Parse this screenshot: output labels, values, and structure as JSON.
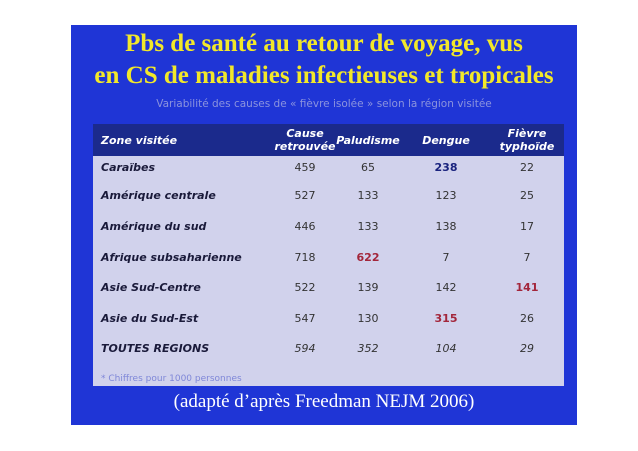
{
  "slide": {
    "title_line1": "Pbs de santé au retour de voyage, vus",
    "title_line2": "en CS de maladies infectieuses et tropicales",
    "subtitle": "Variabilité des causes de « fièvre isolée » selon la région visitée",
    "footnote": "* Chiffres pour 1000 personnes",
    "source": "(adapté d’après Freedman NEJM 2006)",
    "colors": {
      "background": "#1f35d6",
      "title": "#f2e82a",
      "table_header": "#1b2a8c",
      "table_body": "#d1d2ec",
      "highlight_red": "#a3263b",
      "highlight_navy": "#1a237e"
    }
  },
  "table": {
    "headers": [
      {
        "line1": "Zone visitée",
        "line2": ""
      },
      {
        "line1": "Cause",
        "line2": "retrouvée"
      },
      {
        "line1": "Paludisme",
        "line2": ""
      },
      {
        "line1": "Dengue",
        "line2": ""
      },
      {
        "line1": "Fièvre",
        "line2": "typhoïde"
      }
    ],
    "rows": [
      {
        "zone": "Caraïbes",
        "cause": "459",
        "paludisme": "65",
        "dengue": "238",
        "typhoide": "22"
      },
      {
        "zone": "Amérique centrale",
        "cause": "527",
        "paludisme": "133",
        "dengue": "123",
        "typhoide": "25"
      },
      {
        "zone": "Amérique du sud",
        "cause": "446",
        "paludisme": "133",
        "dengue": "138",
        "typhoide": "17"
      },
      {
        "zone": "Afrique subsaharienne",
        "cause": "718",
        "paludisme": "622",
        "dengue": "7",
        "typhoide": "7"
      },
      {
        "zone": "Asie Sud-Centre",
        "cause": "522",
        "paludisme": "139",
        "dengue": "142",
        "typhoide": "141"
      },
      {
        "zone": "Asie du Sud-Est",
        "cause": "547",
        "paludisme": "130",
        "dengue": "315",
        "typhoide": "26"
      },
      {
        "zone": "TOUTES REGIONS",
        "cause": "594",
        "paludisme": "352",
        "dengue": "104",
        "typhoide": "29"
      }
    ]
  }
}
